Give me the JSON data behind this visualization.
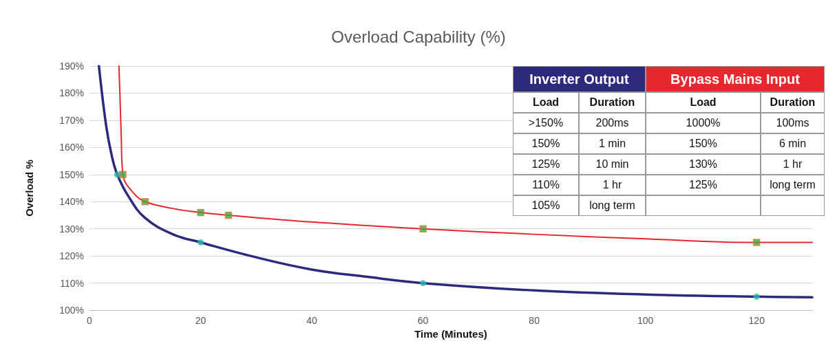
{
  "chart_data": {
    "type": "line",
    "title": "Overload Capability (%)",
    "xlabel": "Time (Minutes)",
    "ylabel": "Overload %",
    "xlim": [
      0,
      130
    ],
    "xticks": [
      0,
      20,
      40,
      60,
      80,
      100,
      120
    ],
    "ylim": [
      100,
      190
    ],
    "yticks": [
      {
        "value": 100,
        "label": "100%"
      },
      {
        "value": 110,
        "label": "110%"
      },
      {
        "value": 120,
        "label": "120%"
      },
      {
        "value": 130,
        "label": "130%"
      },
      {
        "value": 140,
        "label": "140%"
      },
      {
        "value": 150,
        "label": "150%"
      },
      {
        "value": 160,
        "label": "160%"
      },
      {
        "value": 170,
        "label": "170%"
      },
      {
        "value": 180,
        "label": "180%"
      },
      {
        "value": 190,
        "label": "190%"
      }
    ],
    "grid": "y",
    "series": [
      {
        "marker": "none",
        "color": "#2b2a7c",
        "x": [
          1.7,
          3,
          4,
          5,
          7,
          10,
          15,
          20,
          30,
          40,
          50,
          60,
          80,
          100,
          120,
          130
        ],
        "values": [
          190,
          168,
          157,
          150,
          142,
          134,
          128,
          125,
          119.5,
          115,
          112.3,
          110,
          107.3,
          105.8,
          105,
          104.8
        ]
      },
      {
        "marker": "none",
        "color": "#e8262e",
        "x": [
          5.3,
          5.5,
          5.7,
          6,
          8,
          10,
          15,
          20,
          25,
          40,
          60,
          80,
          100,
          120,
          130
        ],
        "values": [
          190,
          178,
          165,
          150,
          143,
          140,
          137.5,
          136,
          135,
          132.5,
          130,
          128,
          126.3,
          125,
          125
        ]
      },
      {
        "type": "scatter",
        "marker": "circle",
        "color": "#2cb5b0",
        "x": [
          5,
          20,
          60,
          120
        ],
        "values": [
          150,
          125,
          110,
          105
        ]
      },
      {
        "type": "scatter",
        "marker": "square",
        "color": "#3aa84a",
        "x": [
          6,
          10,
          20,
          25,
          60,
          120
        ],
        "values": [
          150,
          140,
          136,
          135,
          130,
          125
        ]
      }
    ],
    "annotations": [
      "Inverter Output",
      "Bypass Mains Input",
      "Load",
      "Duration",
      "Load",
      "Duration",
      ">150%",
      "200ms",
      "1000%",
      "100ms",
      "150%",
      "1 min",
      "150%",
      "6 min",
      "125%",
      "10 min",
      "130%",
      "1 hr",
      "110%",
      "1 hr",
      "125%",
      "long term",
      "105%",
      "long term"
    ]
  }
}
